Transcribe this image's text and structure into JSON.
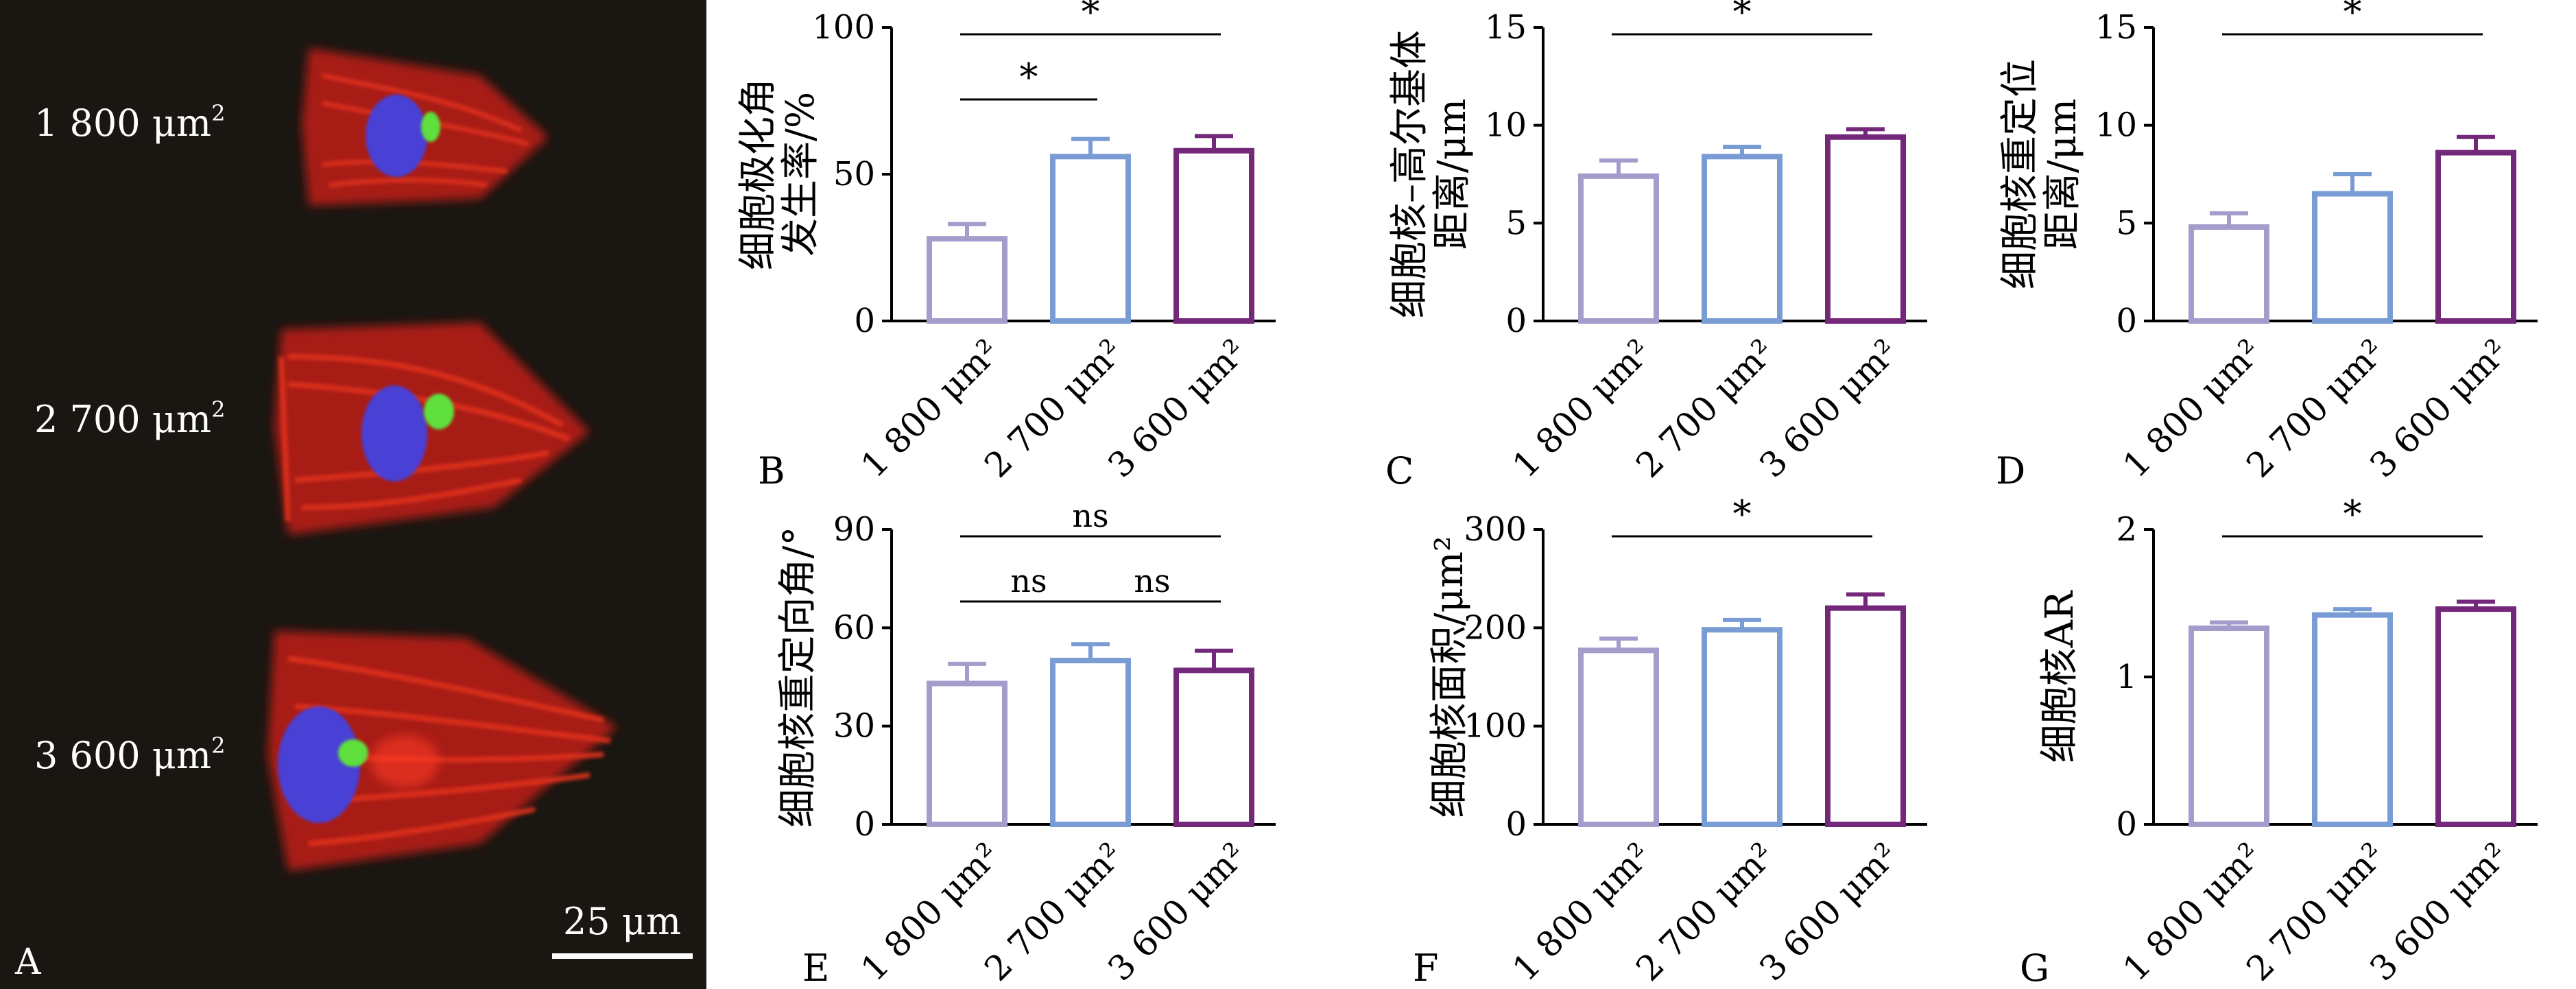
{
  "panel_a": {
    "letter": "A",
    "labels": [
      {
        "text": "1 800 μm",
        "sup": "2"
      },
      {
        "text": "2 700 μm",
        "sup": "2"
      },
      {
        "text": "3 600 μm",
        "sup": "2"
      }
    ],
    "scalebar_label": "25 μm",
    "colors": {
      "background": "#1a1612",
      "actin": "#d8261c",
      "nucleus": "#4a3fd6",
      "golgi": "#5fe03c"
    }
  },
  "series_colors": [
    "#a49ccb",
    "#7a9cd4",
    "#74287a"
  ],
  "chart_data": [
    {
      "panel": "B",
      "type": "bar",
      "ylabel": [
        "细胞极化角",
        "发生率/%"
      ],
      "categories": [
        "1 800 μm²",
        "2 700 μm²",
        "3 600 μm²"
      ],
      "values": [
        28,
        56,
        58
      ],
      "errors": [
        5,
        6,
        5
      ],
      "ylim": [
        0,
        100
      ],
      "yticks": [
        0,
        50,
        100
      ],
      "significance": [
        {
          "from": 0,
          "to": 1,
          "label": "*"
        },
        {
          "from": 0,
          "to": 2,
          "label": "*"
        }
      ]
    },
    {
      "panel": "C",
      "type": "bar",
      "ylabel": [
        "细胞核–高尔基体",
        "距离/μm"
      ],
      "categories": [
        "1 800 μm²",
        "2 700 μm²",
        "3 600 μm²"
      ],
      "values": [
        7.4,
        8.4,
        9.4
      ],
      "errors": [
        0.8,
        0.5,
        0.4
      ],
      "ylim": [
        0,
        15
      ],
      "yticks": [
        0,
        5,
        10,
        15
      ],
      "significance": [
        {
          "from": 0,
          "to": 2,
          "label": "*"
        }
      ]
    },
    {
      "panel": "D",
      "type": "bar",
      "ylabel": [
        "细胞核重定位",
        "距离/μm"
      ],
      "categories": [
        "1 800 μm²",
        "2 700 μm²",
        "3 600 μm²"
      ],
      "values": [
        4.8,
        6.5,
        8.6
      ],
      "errors": [
        0.7,
        1.0,
        0.8
      ],
      "ylim": [
        0,
        15
      ],
      "yticks": [
        0,
        5,
        10,
        15
      ],
      "significance": [
        {
          "from": 0,
          "to": 2,
          "label": "*"
        }
      ]
    },
    {
      "panel": "E",
      "type": "bar",
      "ylabel": [
        "细胞核重定向角/°"
      ],
      "categories": [
        "1 800 μm²",
        "2 700 μm²",
        "3 600 μm²"
      ],
      "values": [
        43,
        50,
        47
      ],
      "errors": [
        6,
        5,
        6
      ],
      "ylim": [
        0,
        90
      ],
      "yticks": [
        0,
        30,
        60,
        90
      ],
      "significance": [
        {
          "from": 0,
          "to": 1,
          "label": "ns"
        },
        {
          "from": 1,
          "to": 2,
          "label": "ns"
        },
        {
          "from": 0,
          "to": 2,
          "label": "ns"
        }
      ]
    },
    {
      "panel": "F",
      "type": "bar",
      "ylabel": [
        "细胞核面积/μm²"
      ],
      "categories": [
        "1 800 μm²",
        "2 700 μm²",
        "3 600 μm²"
      ],
      "values": [
        177,
        198,
        220
      ],
      "errors": [
        12,
        10,
        14
      ],
      "ylim": [
        0,
        300
      ],
      "yticks": [
        0,
        100,
        200,
        300
      ],
      "significance": [
        {
          "from": 0,
          "to": 2,
          "label": "*"
        }
      ]
    },
    {
      "panel": "G",
      "type": "bar",
      "ylabel": [
        "细胞核AR"
      ],
      "categories": [
        "1 800 μm²",
        "2 700 μm²",
        "3 600 μm²"
      ],
      "values": [
        1.33,
        1.42,
        1.46
      ],
      "errors": [
        0.04,
        0.04,
        0.05
      ],
      "ylim": [
        0,
        2
      ],
      "yticks": [
        0,
        1,
        2
      ],
      "significance": [
        {
          "from": 0,
          "to": 2,
          "label": "*"
        }
      ]
    }
  ]
}
